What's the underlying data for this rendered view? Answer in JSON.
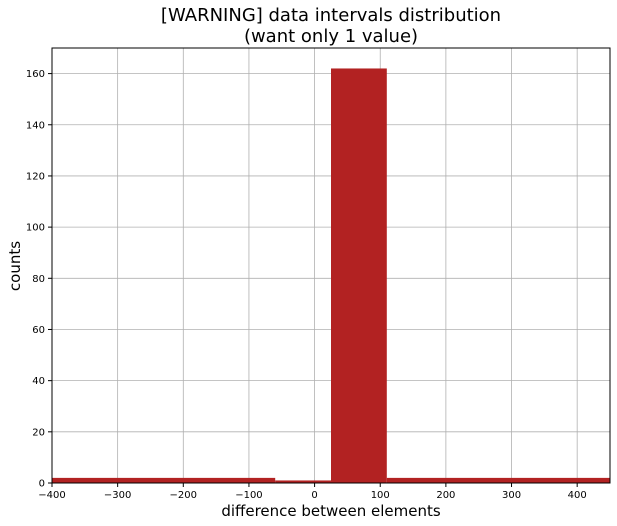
{
  "chart_data": {
    "type": "bar",
    "title_line1": "[WARNING] data intervals distribution",
    "title_line2": "(want only 1 value)",
    "xlabel": "difference between elements",
    "ylabel": "counts",
    "xlim": [
      -400,
      450
    ],
    "ylim": [
      0,
      170
    ],
    "xticks": [
      -400,
      -300,
      -200,
      -100,
      0,
      100,
      200,
      300,
      400
    ],
    "xtick_labels": [
      "−400",
      "−300",
      "−200",
      "−100",
      "0",
      "100",
      "200",
      "300",
      "400"
    ],
    "yticks": [
      0,
      20,
      40,
      60,
      80,
      100,
      120,
      140,
      160
    ],
    "ytick_labels": [
      "0",
      "20",
      "40",
      "60",
      "80",
      "100",
      "120",
      "140",
      "160"
    ],
    "grid": true,
    "bar_color": "#b22222",
    "bins": [
      {
        "x0": -400,
        "x1": -60,
        "count": 2
      },
      {
        "x0": -60,
        "x1": 25,
        "count": 1
      },
      {
        "x0": 25,
        "x1": 110,
        "count": 162
      },
      {
        "x0": 110,
        "x1": 450,
        "count": 2
      }
    ]
  }
}
